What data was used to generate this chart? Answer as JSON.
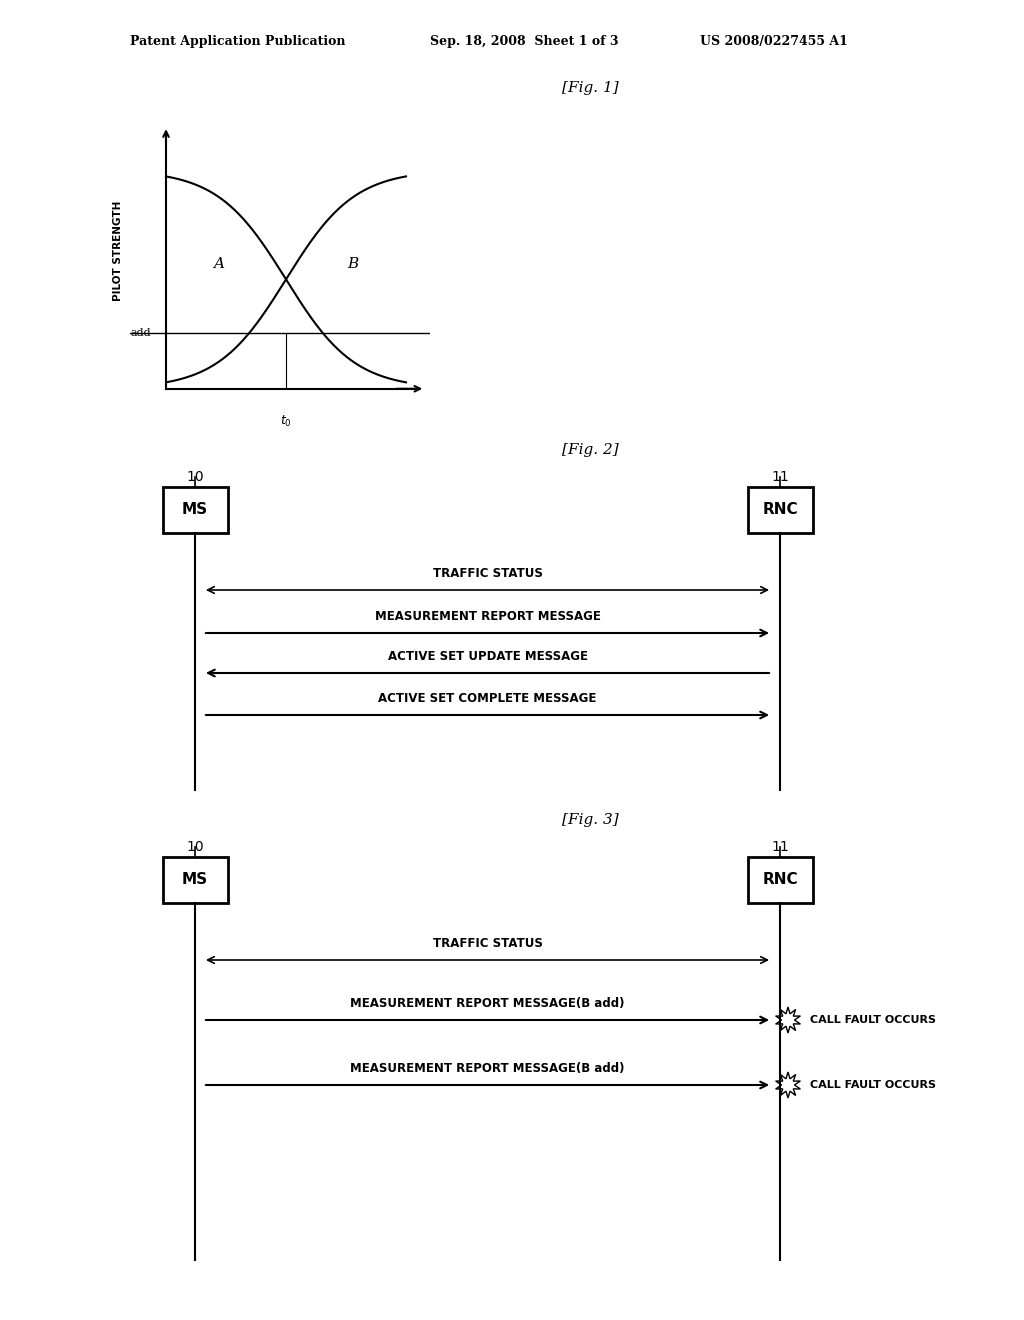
{
  "bg_color": "#ffffff",
  "header_left": "Patent Application Publication",
  "header_mid": "Sep. 18, 2008  Sheet 1 of 3",
  "header_right": "US 2008/0227455 A1",
  "fig1_label": "[Fig. 1]",
  "fig2_label": "[Fig. 2]",
  "fig3_label": "[Fig. 3]",
  "fig1": {
    "ylabel": "PILOT STRENGTH",
    "add_label": "add",
    "t0_label": "t0",
    "curve_A_label": "A",
    "curve_B_label": "B"
  },
  "fig2": {
    "ms_label": "MS",
    "rnc_label": "RNC",
    "ms_num": "10",
    "rnc_num": "11",
    "messages": [
      {
        "text": "TRAFFIC STATUS",
        "direction": "both"
      },
      {
        "text": "MEASUREMENT REPORT MESSAGE",
        "direction": "right"
      },
      {
        "text": "ACTIVE SET UPDATE MESSAGE",
        "direction": "left"
      },
      {
        "text": "ACTIVE SET COMPLETE MESSAGE",
        "direction": "right"
      }
    ]
  },
  "fig3": {
    "ms_label": "MS",
    "rnc_label": "RNC",
    "ms_num": "10",
    "rnc_num": "11",
    "messages": [
      {
        "text": "TRAFFIC STATUS",
        "direction": "both"
      },
      {
        "text": "MEASUREMENT REPORT MESSAGE(B add)",
        "direction": "right",
        "fault": "CALL FAULT OCCURS"
      },
      {
        "text": "MEASUREMENT REPORT MESSAGE(B add)",
        "direction": "right",
        "fault": "CALL FAULT OCCURS"
      }
    ]
  }
}
